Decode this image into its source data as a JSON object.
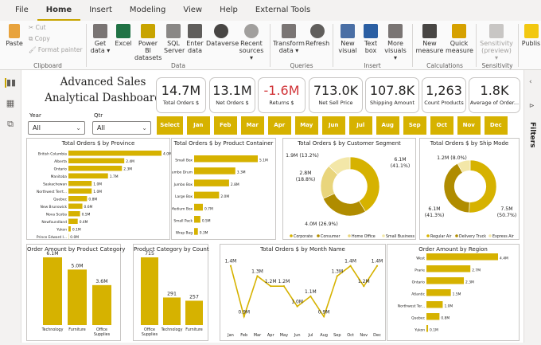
{
  "menu": {
    "tabs": [
      "File",
      "Home",
      "Insert",
      "Modeling",
      "View",
      "Help",
      "External Tools"
    ],
    "active": "Home"
  },
  "ribbon": {
    "paste": "Paste",
    "cut": "Cut",
    "copy": "Copy",
    "format_painter": "Format painter",
    "get_data": "Get data",
    "excel": "Excel",
    "power_bi": "Power BI datasets",
    "sql": "SQL Server",
    "enter_data": "Enter data",
    "dataverse": "Dataverse",
    "recent": "Recent sources",
    "transform": "Transform data",
    "refresh": "Refresh",
    "new_visual": "New visual",
    "text_box": "Text box",
    "more_visuals": "More visuals",
    "new_measure": "New measure",
    "quick_measure": "Quick measure",
    "sensitivity": "Sensitivity (preview)",
    "publish": "Publis",
    "groups": {
      "clipboard": "Clipboard",
      "data": "Data",
      "queries": "Queries",
      "insert": "Insert",
      "calculations": "Calculations",
      "sensitivity": "Sensitivity"
    }
  },
  "panes": {
    "filters": "Filters"
  },
  "dashboard": {
    "title_line1": "Advanced Sales",
    "title_line2": "Analytical Dashboard",
    "kpis": [
      {
        "value": "14.7M",
        "label": "Total Orders $"
      },
      {
        "value": "13.1M",
        "label": "Net Orders $"
      },
      {
        "value": "-1.6M",
        "label": "Returns $"
      },
      {
        "value": "713.0K",
        "label": "Net Sell Price"
      },
      {
        "value": "107.8K",
        "label": "Shipping Amount"
      },
      {
        "value": "1,263",
        "label": "Count Products"
      },
      {
        "value": "1.8K",
        "label": "Average of Order..."
      }
    ],
    "slicers": {
      "year_label": "Year",
      "year_value": "All",
      "qtr_label": "Qtr",
      "qtr_value": "All"
    },
    "months": [
      "Select all",
      "Jan",
      "Feb",
      "Mar",
      "Apr",
      "May",
      "Jun",
      "Jul",
      "Aug",
      "Sep",
      "Oct",
      "Nov",
      "Dec"
    ]
  },
  "colors": {
    "accent": "#d6b200",
    "dark": "#b08c00",
    "light": "#e9d57c",
    "lighter": "#f3e7a8",
    "negative": "#d13438"
  },
  "chart_data": [
    {
      "type": "bar",
      "title": "Total Orders $ by Province",
      "orientation": "horizontal",
      "categories": [
        "British Columbia",
        "Alberta",
        "Ontario",
        "Manitoba",
        "Saskachewan",
        "Northwest Terrt...",
        "Quebec",
        "New Brunswick",
        "Nova Scotia",
        "Newfoundland",
        "Yukon",
        "Prince Edward I..."
      ],
      "values": [
        4.0,
        2.4,
        2.3,
        1.7,
        1.0,
        1.0,
        0.8,
        0.6,
        0.5,
        0.4,
        0.1,
        0.0
      ],
      "labels": [
        "4.0M",
        "2.4M",
        "2.3M",
        "1.7M",
        "1.0M",
        "1.0M",
        "0.8M",
        "0.6M",
        "0.5M",
        "0.4M",
        "0.1M",
        "0.0M"
      ],
      "max": 4.0
    },
    {
      "type": "bar",
      "title": "Total Orders $ by Product Container",
      "orientation": "horizontal",
      "categories": [
        "Small Box",
        "Jumbo Drum",
        "Jumbo Box",
        "Large Box",
        "Medium Box",
        "Small Pack",
        "Wrap Bag"
      ],
      "values": [
        5.1,
        3.3,
        2.8,
        2.0,
        0.7,
        0.5,
        0.3
      ],
      "labels": [
        "5.1M",
        "3.3M",
        "2.8M",
        "2.0M",
        "0.7M",
        "0.5M",
        "0.3M"
      ],
      "max": 5.1
    },
    {
      "type": "pie",
      "title": "Total Orders $ by Customer Segment",
      "categories": [
        "Corporate",
        "Consumer",
        "Home Office",
        "Small Business"
      ],
      "values": [
        6.1,
        4.0,
        2.8,
        1.9
      ],
      "labels": [
        "6.1M (41.1%)",
        "4.0M (26.9%)",
        "2.8M (18.8%)",
        "1.9M (13.2%)"
      ],
      "legend": "bottom"
    },
    {
      "type": "pie",
      "title": "Total Orders $ by Ship Mode",
      "categories": [
        "Regular Air",
        "Delivery Truck",
        "Express Air"
      ],
      "values": [
        7.5,
        6.1,
        1.2
      ],
      "labels": [
        "7.5M (50.7%)",
        "6.1M (41.3%)",
        "1.2M (8.0%)"
      ],
      "legend": "bottom"
    },
    {
      "type": "bar",
      "title": "Order Amount by Product Category",
      "categories": [
        "Technology",
        "Furniture",
        "Office Supplies"
      ],
      "values": [
        6.1,
        5.0,
        3.6
      ],
      "labels": [
        "6.1M",
        "5.0M",
        "3.6M"
      ],
      "max": 6.1
    },
    {
      "type": "bar",
      "title": "Product Category by Count",
      "categories": [
        "Office Supplies",
        "Technology",
        "Furniture"
      ],
      "values": [
        715,
        291,
        257
      ],
      "labels": [
        "715",
        "291",
        "257"
      ],
      "max": 715
    },
    {
      "type": "line",
      "title": "Total Orders $ by Month Name",
      "categories": [
        "Jan",
        "Feb",
        "Mar",
        "Apr",
        "May",
        "Jun",
        "Jul",
        "Aug",
        "Sep",
        "Oct",
        "Nov",
        "Dec"
      ],
      "values": [
        1.4,
        0.9,
        1.3,
        1.2,
        1.2,
        1.0,
        1.1,
        0.9,
        1.3,
        1.4,
        1.2,
        1.4
      ],
      "labels": [
        "1.4M",
        "0.9M",
        "1.3M",
        "1.2M",
        "1.2M",
        "1.0M",
        "1.1M",
        "0.9M",
        "1.3M",
        "1.4M",
        "1.2M",
        "1.4M"
      ],
      "ylim": [
        0.8,
        1.5
      ]
    },
    {
      "type": "bar",
      "title": "Order Amount by Region",
      "orientation": "horizontal",
      "categories": [
        "West",
        "Prarie",
        "Ontario",
        "Atlantic",
        "Northwest Ter...",
        "Quebec",
        "Yukon"
      ],
      "values": [
        4.4,
        2.7,
        2.3,
        1.5,
        1.0,
        0.8,
        0.1
      ],
      "labels": [
        "4.4M",
        "2.7M",
        "2.3M",
        "1.5M",
        "1.0M",
        "0.8M",
        "0.1M"
      ],
      "max": 4.4
    }
  ]
}
